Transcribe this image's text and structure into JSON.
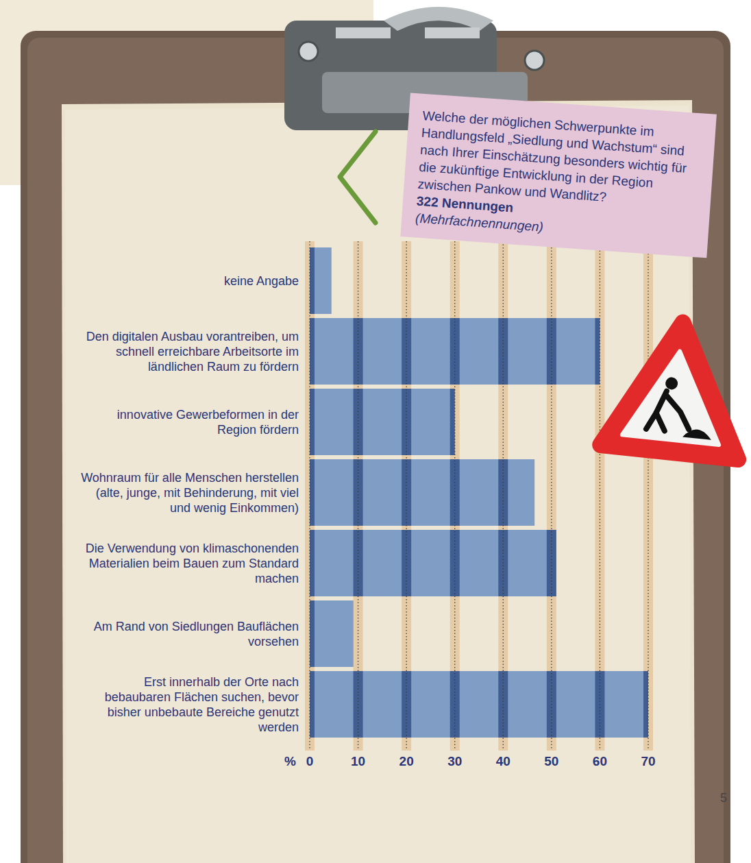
{
  "chart_data": {
    "type": "bar",
    "orientation": "horizontal",
    "title": "Welche der möglichen Schwerpunkte im Handlungsfeld „Siedlung und Wachstum“ sind nach Ihrer Einschätzung besonders wichtig für die zukünftige Entwicklung in der Region zwischen Pankow und Wandlitz?",
    "subtitle": "322 Nennungen",
    "note": "(Mehrfachnennungen)",
    "x_label": "%",
    "categories": [
      "keine Angabe",
      "Den digitalen Ausbau vorantreiben, um schnell erreichbare Arbeitsorte im ländlichen Raum zu fördern",
      "innovative Gewerbeformen in der Region fördern",
      "Wohnraum für alle Menschen herstellen (alte, junge, mit Behinderung, mit viel und wenig Einkommen)",
      "Die Verwendung von klimaschonenden Materialien beim Bauen zum Standard machen",
      "Am Rand von Siedlungen Bauflächen vorsehen",
      "Erst innerhalb der Orte nach bebaubaren Flächen suchen, bevor bisher unbebaute Bereiche genutzt werden"
    ],
    "values": [
      4.5,
      60,
      30,
      46.5,
      51,
      9,
      70
    ],
    "color": "#7f9dc5",
    "xlim": [
      0,
      70
    ],
    "xticks": [
      0,
      10,
      20,
      30,
      40,
      50,
      60,
      70
    ],
    "grid": true
  },
  "page_number": "5"
}
